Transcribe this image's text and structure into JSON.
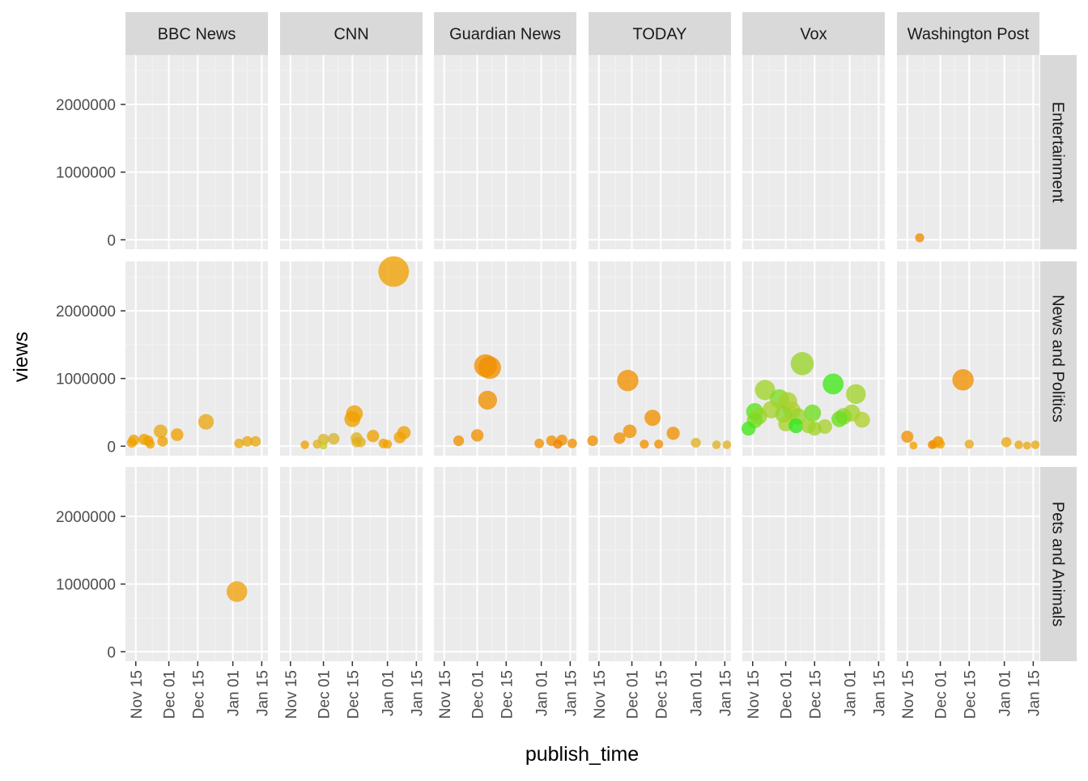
{
  "chart_data": {
    "type": "scatter",
    "facet_columns": [
      "BBC News",
      "CNN",
      "Guardian News",
      "TODAY",
      "Vox",
      "Washington Post"
    ],
    "facet_rows": [
      "Entertainment",
      "News and Politics",
      "Pets and Animals"
    ],
    "xlabel": "publish_time",
    "ylabel": "views",
    "x_ticks": [
      {
        "date": "2017-11-15",
        "label": "Nov 15"
      },
      {
        "date": "2017-12-01",
        "label": "Dec 01"
      },
      {
        "date": "2017-12-15",
        "label": "Dec 15"
      },
      {
        "date": "2018-01-01",
        "label": "Jan 01"
      },
      {
        "date": "2018-01-15",
        "label": "Jan 15"
      }
    ],
    "y_ticks": [
      {
        "value": 0,
        "label": "0"
      },
      {
        "value": 1000000,
        "label": "1000000"
      },
      {
        "value": 2000000,
        "label": "2000000"
      }
    ],
    "xlim": [
      "2017-11-10",
      "2018-01-18"
    ],
    "ylim": [
      -140000,
      2730000
    ],
    "grid": true,
    "point_size_scale": {
      "min_views": 0,
      "max_views": 2600000,
      "min_radius": 4,
      "max_radius": 19
    },
    "colors": {
      "panel_background": "#ebebeb",
      "strip_background": "#d9d9d9",
      "grid_major": "#ffffff",
      "grid_minor": "#f3f3f3",
      "orange": "#f5a000",
      "yellow_green": "#b7d62b",
      "green": "#39e61a"
    },
    "points": [
      {
        "channel": "Washington Post",
        "category": "Entertainment",
        "date": "2017-11-21",
        "views": 30000,
        "color": "#f08a00"
      },
      {
        "channel": "BBC News",
        "category": "Pets and Animals",
        "date": "2018-01-03",
        "views": 890000,
        "color": "#f0a10a"
      },
      {
        "channel": "BBC News",
        "category": "News and Politics",
        "date": "2017-11-13",
        "views": 50000,
        "color": "#f0a000"
      },
      {
        "channel": "BBC News",
        "category": "News and Politics",
        "date": "2017-11-14",
        "views": 90000,
        "color": "#f0a000"
      },
      {
        "channel": "BBC News",
        "category": "News and Politics",
        "date": "2017-11-19",
        "views": 100000,
        "color": "#f0a000"
      },
      {
        "channel": "BBC News",
        "category": "News and Politics",
        "date": "2017-11-21",
        "views": 80000,
        "color": "#f0a000"
      },
      {
        "channel": "BBC News",
        "category": "News and Politics",
        "date": "2017-11-22",
        "views": 30000,
        "color": "#f0a000"
      },
      {
        "channel": "BBC News",
        "category": "News and Politics",
        "date": "2017-11-27",
        "views": 220000,
        "color": "#e8a812"
      },
      {
        "channel": "BBC News",
        "category": "News and Politics",
        "date": "2017-11-28",
        "views": 70000,
        "color": "#f0a000"
      },
      {
        "channel": "BBC News",
        "category": "News and Politics",
        "date": "2017-12-05",
        "views": 170000,
        "color": "#f0a000"
      },
      {
        "channel": "BBC News",
        "category": "News and Politics",
        "date": "2017-12-19",
        "views": 360000,
        "color": "#e8a812"
      },
      {
        "channel": "BBC News",
        "category": "News and Politics",
        "date": "2018-01-04",
        "views": 40000,
        "color": "#e8a812"
      },
      {
        "channel": "BBC News",
        "category": "News and Politics",
        "date": "2018-01-08",
        "views": 70000,
        "color": "#e8a812"
      },
      {
        "channel": "BBC News",
        "category": "News and Politics",
        "date": "2018-01-12",
        "views": 70000,
        "color": "#e8a812"
      },
      {
        "channel": "CNN",
        "category": "News and Politics",
        "date": "2017-11-22",
        "views": 20000,
        "color": "#f0a000"
      },
      {
        "channel": "CNN",
        "category": "News and Politics",
        "date": "2017-11-28",
        "views": 30000,
        "color": "#e0b020"
      },
      {
        "channel": "CNN",
        "category": "News and Politics",
        "date": "2017-12-01",
        "views": 100000,
        "color": "#d8b52a"
      },
      {
        "channel": "CNN",
        "category": "News and Politics",
        "date": "2017-12-01",
        "views": 10000,
        "color": "#c8cc28"
      },
      {
        "channel": "CNN",
        "category": "News and Politics",
        "date": "2017-12-06",
        "views": 110000,
        "color": "#d8b52a"
      },
      {
        "channel": "CNN",
        "category": "News and Politics",
        "date": "2017-12-15",
        "views": 400000,
        "color": "#f0a000"
      },
      {
        "channel": "CNN",
        "category": "News and Politics",
        "date": "2017-12-16",
        "views": 480000,
        "color": "#f0a000"
      },
      {
        "channel": "CNN",
        "category": "News and Politics",
        "date": "2017-12-17",
        "views": 120000,
        "color": "#e0b020"
      },
      {
        "channel": "CNN",
        "category": "News and Politics",
        "date": "2017-12-17",
        "views": 60000,
        "color": "#e0b020"
      },
      {
        "channel": "CNN",
        "category": "News and Politics",
        "date": "2017-12-19",
        "views": 60000,
        "color": "#e0b020"
      },
      {
        "channel": "CNN",
        "category": "News and Politics",
        "date": "2017-12-25",
        "views": 150000,
        "color": "#f0a000"
      },
      {
        "channel": "CNN",
        "category": "News and Politics",
        "date": "2017-12-30",
        "views": 40000,
        "color": "#f0a000"
      },
      {
        "channel": "CNN",
        "category": "News and Politics",
        "date": "2018-01-01",
        "views": 30000,
        "color": "#f0a000"
      },
      {
        "channel": "CNN",
        "category": "News and Politics",
        "date": "2018-01-04",
        "views": 2580000,
        "color": "#f0a000"
      },
      {
        "channel": "CNN",
        "category": "News and Politics",
        "date": "2018-01-07",
        "views": 130000,
        "color": "#f0a000"
      },
      {
        "channel": "CNN",
        "category": "News and Politics",
        "date": "2018-01-09",
        "views": 200000,
        "color": "#f0a000"
      },
      {
        "channel": "Guardian News",
        "category": "News and Politics",
        "date": "2017-11-22",
        "views": 80000,
        "color": "#f09000"
      },
      {
        "channel": "Guardian News",
        "category": "News and Politics",
        "date": "2017-12-01",
        "views": 160000,
        "color": "#f09000"
      },
      {
        "channel": "Guardian News",
        "category": "News and Politics",
        "date": "2017-12-05",
        "views": 1190000,
        "color": "#f09000"
      },
      {
        "channel": "Guardian News",
        "category": "News and Politics",
        "date": "2017-12-06",
        "views": 680000,
        "color": "#f09000"
      },
      {
        "channel": "Guardian News",
        "category": "News and Politics",
        "date": "2017-12-07",
        "views": 1160000,
        "color": "#f09000"
      },
      {
        "channel": "Guardian News",
        "category": "News and Politics",
        "date": "2017-12-31",
        "views": 40000,
        "color": "#f09000"
      },
      {
        "channel": "Guardian News",
        "category": "News and Politics",
        "date": "2018-01-06",
        "views": 80000,
        "color": "#f09000"
      },
      {
        "channel": "Guardian News",
        "category": "News and Politics",
        "date": "2018-01-09",
        "views": 30000,
        "color": "#f08000"
      },
      {
        "channel": "Guardian News",
        "category": "News and Politics",
        "date": "2018-01-11",
        "views": 90000,
        "color": "#f09000"
      },
      {
        "channel": "Guardian News",
        "category": "News and Politics",
        "date": "2018-01-16",
        "views": 40000,
        "color": "#f09000"
      },
      {
        "channel": "TODAY",
        "category": "News and Politics",
        "date": "2017-11-12",
        "views": 80000,
        "color": "#f09000"
      },
      {
        "channel": "TODAY",
        "category": "News and Politics",
        "date": "2017-11-25",
        "views": 120000,
        "color": "#f09000"
      },
      {
        "channel": "TODAY",
        "category": "News and Politics",
        "date": "2017-11-29",
        "views": 970000,
        "color": "#f09000"
      },
      {
        "channel": "TODAY",
        "category": "News and Politics",
        "date": "2017-11-30",
        "views": 220000,
        "color": "#f09000"
      },
      {
        "channel": "TODAY",
        "category": "News and Politics",
        "date": "2017-12-07",
        "views": 30000,
        "color": "#f09000"
      },
      {
        "channel": "TODAY",
        "category": "News and Politics",
        "date": "2017-12-11",
        "views": 420000,
        "color": "#f09000"
      },
      {
        "channel": "TODAY",
        "category": "News and Politics",
        "date": "2017-12-14",
        "views": 30000,
        "color": "#f09000"
      },
      {
        "channel": "TODAY",
        "category": "News and Politics",
        "date": "2017-12-21",
        "views": 190000,
        "color": "#f09000"
      },
      {
        "channel": "TODAY",
        "category": "News and Politics",
        "date": "2018-01-01",
        "views": 50000,
        "color": "#e0b020"
      },
      {
        "channel": "TODAY",
        "category": "News and Politics",
        "date": "2018-01-11",
        "views": 20000,
        "color": "#e0b020"
      },
      {
        "channel": "TODAY",
        "category": "News and Politics",
        "date": "2018-01-16",
        "views": 20000,
        "color": "#e0b020"
      },
      {
        "channel": "Vox",
        "category": "News and Politics",
        "date": "2017-11-13",
        "views": 260000,
        "color": "#3ee817"
      },
      {
        "channel": "Vox",
        "category": "News and Politics",
        "date": "2017-11-16",
        "views": 510000,
        "color": "#5ae21d"
      },
      {
        "channel": "Vox",
        "category": "News and Politics",
        "date": "2017-11-16",
        "views": 380000,
        "color": "#7adb24"
      },
      {
        "channel": "Vox",
        "category": "News and Politics",
        "date": "2017-11-18",
        "views": 440000,
        "color": "#9ad42a"
      },
      {
        "channel": "Vox",
        "category": "News and Politics",
        "date": "2017-11-21",
        "views": 830000,
        "color": "#a0d42a"
      },
      {
        "channel": "Vox",
        "category": "News and Politics",
        "date": "2017-11-24",
        "views": 540000,
        "color": "#a8d12c"
      },
      {
        "channel": "Vox",
        "category": "News and Politics",
        "date": "2017-11-28",
        "views": 700000,
        "color": "#7fda25"
      },
      {
        "channel": "Vox",
        "category": "News and Politics",
        "date": "2017-11-30",
        "views": 470000,
        "color": "#8ed62a"
      },
      {
        "channel": "Vox",
        "category": "News and Politics",
        "date": "2017-12-02",
        "views": 660000,
        "color": "#aad02c"
      },
      {
        "channel": "Vox",
        "category": "News and Politics",
        "date": "2017-12-01",
        "views": 330000,
        "color": "#a8d12c"
      },
      {
        "channel": "Vox",
        "category": "News and Politics",
        "date": "2017-12-04",
        "views": 530000,
        "color": "#aed02e"
      },
      {
        "channel": "Vox",
        "category": "News and Politics",
        "date": "2017-12-06",
        "views": 300000,
        "color": "#2ee818"
      },
      {
        "channel": "Vox",
        "category": "News and Politics",
        "date": "2017-12-07",
        "views": 440000,
        "color": "#9ad42a"
      },
      {
        "channel": "Vox",
        "category": "News and Politics",
        "date": "2017-12-09",
        "views": 1220000,
        "color": "#9ad42a"
      },
      {
        "channel": "Vox",
        "category": "News and Politics",
        "date": "2017-12-12",
        "views": 300000,
        "color": "#a0d42a"
      },
      {
        "channel": "Vox",
        "category": "News and Politics",
        "date": "2017-12-14",
        "views": 490000,
        "color": "#6ade20"
      },
      {
        "channel": "Vox",
        "category": "News and Politics",
        "date": "2017-12-15",
        "views": 260000,
        "color": "#a0d42a"
      },
      {
        "channel": "Vox",
        "category": "News and Politics",
        "date": "2017-12-20",
        "views": 290000,
        "color": "#a8d12c"
      },
      {
        "channel": "Vox",
        "category": "News and Politics",
        "date": "2017-12-24",
        "views": 920000,
        "color": "#3ee817"
      },
      {
        "channel": "Vox",
        "category": "News and Politics",
        "date": "2017-12-27",
        "views": 400000,
        "color": "#6ade20"
      },
      {
        "channel": "Vox",
        "category": "News and Politics",
        "date": "2017-12-29",
        "views": 440000,
        "color": "#8ed62a"
      },
      {
        "channel": "Vox",
        "category": "News and Politics",
        "date": "2018-01-02",
        "views": 490000,
        "color": "#a0d42a"
      },
      {
        "channel": "Vox",
        "category": "News and Politics",
        "date": "2018-01-04",
        "views": 770000,
        "color": "#a0d42a"
      },
      {
        "channel": "Vox",
        "category": "News and Politics",
        "date": "2018-01-07",
        "views": 390000,
        "color": "#b0cf2e"
      },
      {
        "channel": "Washington Post",
        "category": "News and Politics",
        "date": "2017-11-15",
        "views": 140000,
        "color": "#f09000"
      },
      {
        "channel": "Washington Post",
        "category": "News and Politics",
        "date": "2017-11-18",
        "views": 10000,
        "color": "#f0a000"
      },
      {
        "channel": "Washington Post",
        "category": "News and Politics",
        "date": "2017-11-27",
        "views": 20000,
        "color": "#f08a00"
      },
      {
        "channel": "Washington Post",
        "category": "News and Politics",
        "date": "2017-11-28",
        "views": 30000,
        "color": "#f0a000"
      },
      {
        "channel": "Washington Post",
        "category": "News and Politics",
        "date": "2017-11-30",
        "views": 70000,
        "color": "#f09000"
      },
      {
        "channel": "Washington Post",
        "category": "News and Politics",
        "date": "2017-12-01",
        "views": 30000,
        "color": "#f0a000"
      },
      {
        "channel": "Washington Post",
        "category": "News and Politics",
        "date": "2017-12-12",
        "views": 980000,
        "color": "#f09000"
      },
      {
        "channel": "Washington Post",
        "category": "News and Politics",
        "date": "2017-12-15",
        "views": 30000,
        "color": "#e8a812"
      },
      {
        "channel": "Washington Post",
        "category": "News and Politics",
        "date": "2018-01-02",
        "views": 60000,
        "color": "#e8a812"
      },
      {
        "channel": "Washington Post",
        "category": "News and Politics",
        "date": "2018-01-08",
        "views": 20000,
        "color": "#e8a812"
      },
      {
        "channel": "Washington Post",
        "category": "News and Politics",
        "date": "2018-01-12",
        "views": 10000,
        "color": "#e8a812"
      },
      {
        "channel": "Washington Post",
        "category": "News and Politics",
        "date": "2018-01-16",
        "views": 20000,
        "color": "#e8a812"
      }
    ]
  }
}
